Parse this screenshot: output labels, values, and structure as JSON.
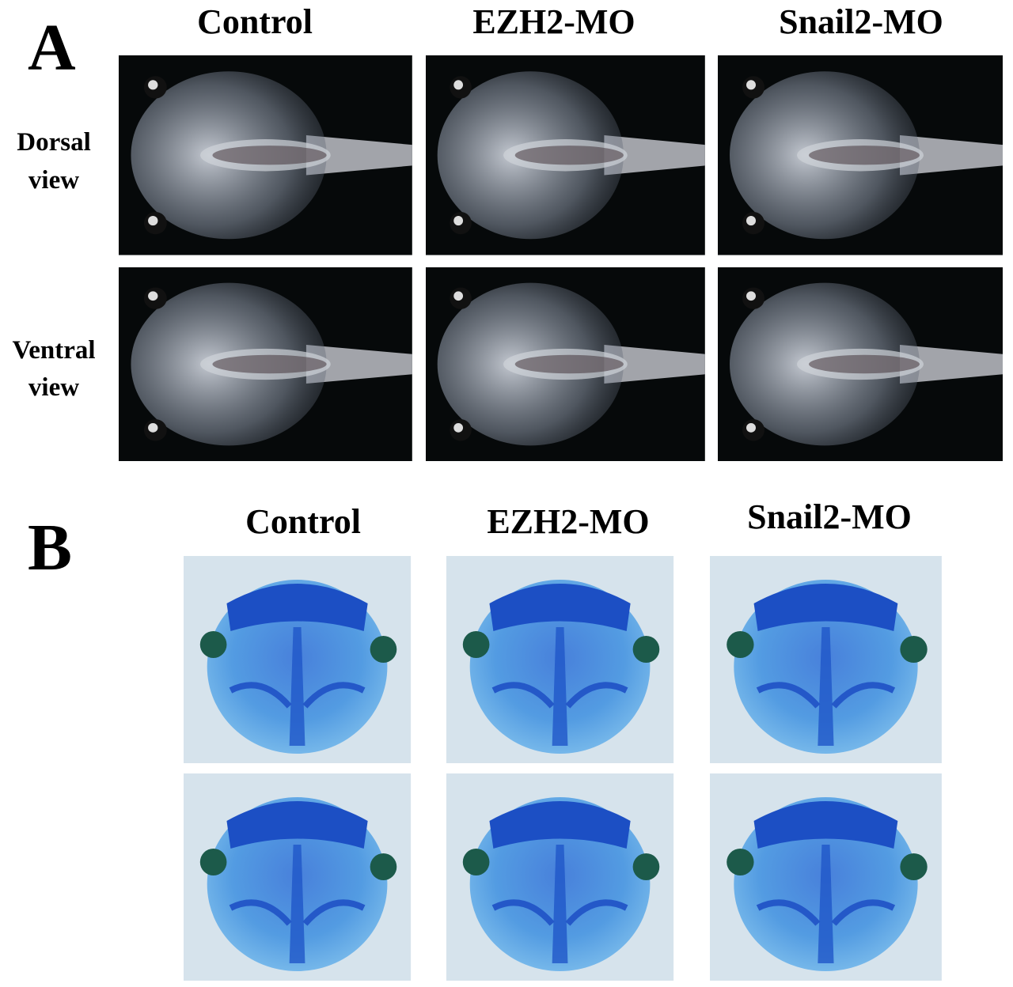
{
  "panels": [
    {
      "label": "A",
      "columns": [
        "Control",
        "EZH2-MO",
        "Snail2-MO"
      ],
      "rows": [
        {
          "label_lines": [
            "Dorsal",
            "view"
          ]
        },
        {
          "label_lines": [
            "Ventral",
            "view"
          ]
        }
      ]
    },
    {
      "label": "B",
      "columns": [
        "Control",
        "EZH2-MO",
        "Snail2-MO"
      ]
    }
  ]
}
